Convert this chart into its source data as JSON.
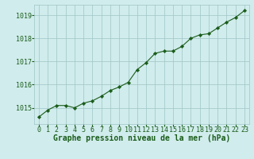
{
  "x": [
    0,
    1,
    2,
    3,
    4,
    5,
    6,
    7,
    8,
    9,
    10,
    11,
    12,
    13,
    14,
    15,
    16,
    17,
    18,
    19,
    20,
    21,
    22,
    23
  ],
  "y": [
    1014.6,
    1014.9,
    1015.1,
    1015.1,
    1015.0,
    1015.2,
    1015.3,
    1015.5,
    1015.75,
    1015.9,
    1016.1,
    1016.65,
    1016.95,
    1017.35,
    1017.45,
    1017.45,
    1017.65,
    1018.0,
    1018.15,
    1018.2,
    1018.45,
    1018.7,
    1018.9,
    1019.2
  ],
  "line_color": "#1a5c1a",
  "marker": "D",
  "marker_size": 2.2,
  "bg_color": "#d0ecec",
  "grid_color": "#a0c4c4",
  "axis_label_color": "#1a5c1a",
  "tick_color": "#1a5c1a",
  "xlabel": "Graphe pression niveau de la mer (hPa)",
  "ylim": [
    1014.3,
    1019.45
  ],
  "yticks": [
    1015,
    1016,
    1017,
    1018,
    1019
  ],
  "xticks": [
    0,
    1,
    2,
    3,
    4,
    5,
    6,
    7,
    8,
    9,
    10,
    11,
    12,
    13,
    14,
    15,
    16,
    17,
    18,
    19,
    20,
    21,
    22,
    23
  ],
  "xlabel_fontsize": 7.0,
  "tick_fontsize": 6.0,
  "linewidth": 0.8
}
